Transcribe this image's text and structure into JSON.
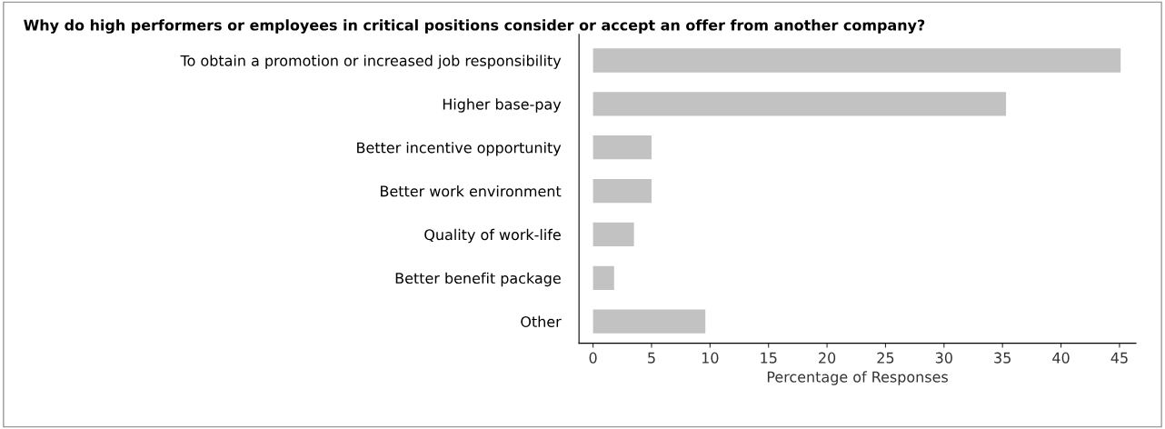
{
  "chart_data": {
    "type": "bar",
    "orientation": "horizontal",
    "title": "Why do high performers or employees in critical positions consider or accept an offer from another company?",
    "categories": [
      "To obtain a promotion or increased job responsibility",
      "Higher base-pay",
      "Better incentive opportunity",
      "Better work environment",
      "Quality of work-life",
      "Better benefit package",
      "Other"
    ],
    "values": [
      45.1,
      35.3,
      5.0,
      5.0,
      3.5,
      1.8,
      9.6
    ],
    "color": "#c2c2c2",
    "xlabel": "Percentage of Responses",
    "xlim": [
      -1.2,
      46.4
    ],
    "xticks": [
      0,
      5,
      10,
      15,
      20,
      25,
      30,
      35,
      40,
      45
    ],
    "grid": false,
    "legend": false
  }
}
